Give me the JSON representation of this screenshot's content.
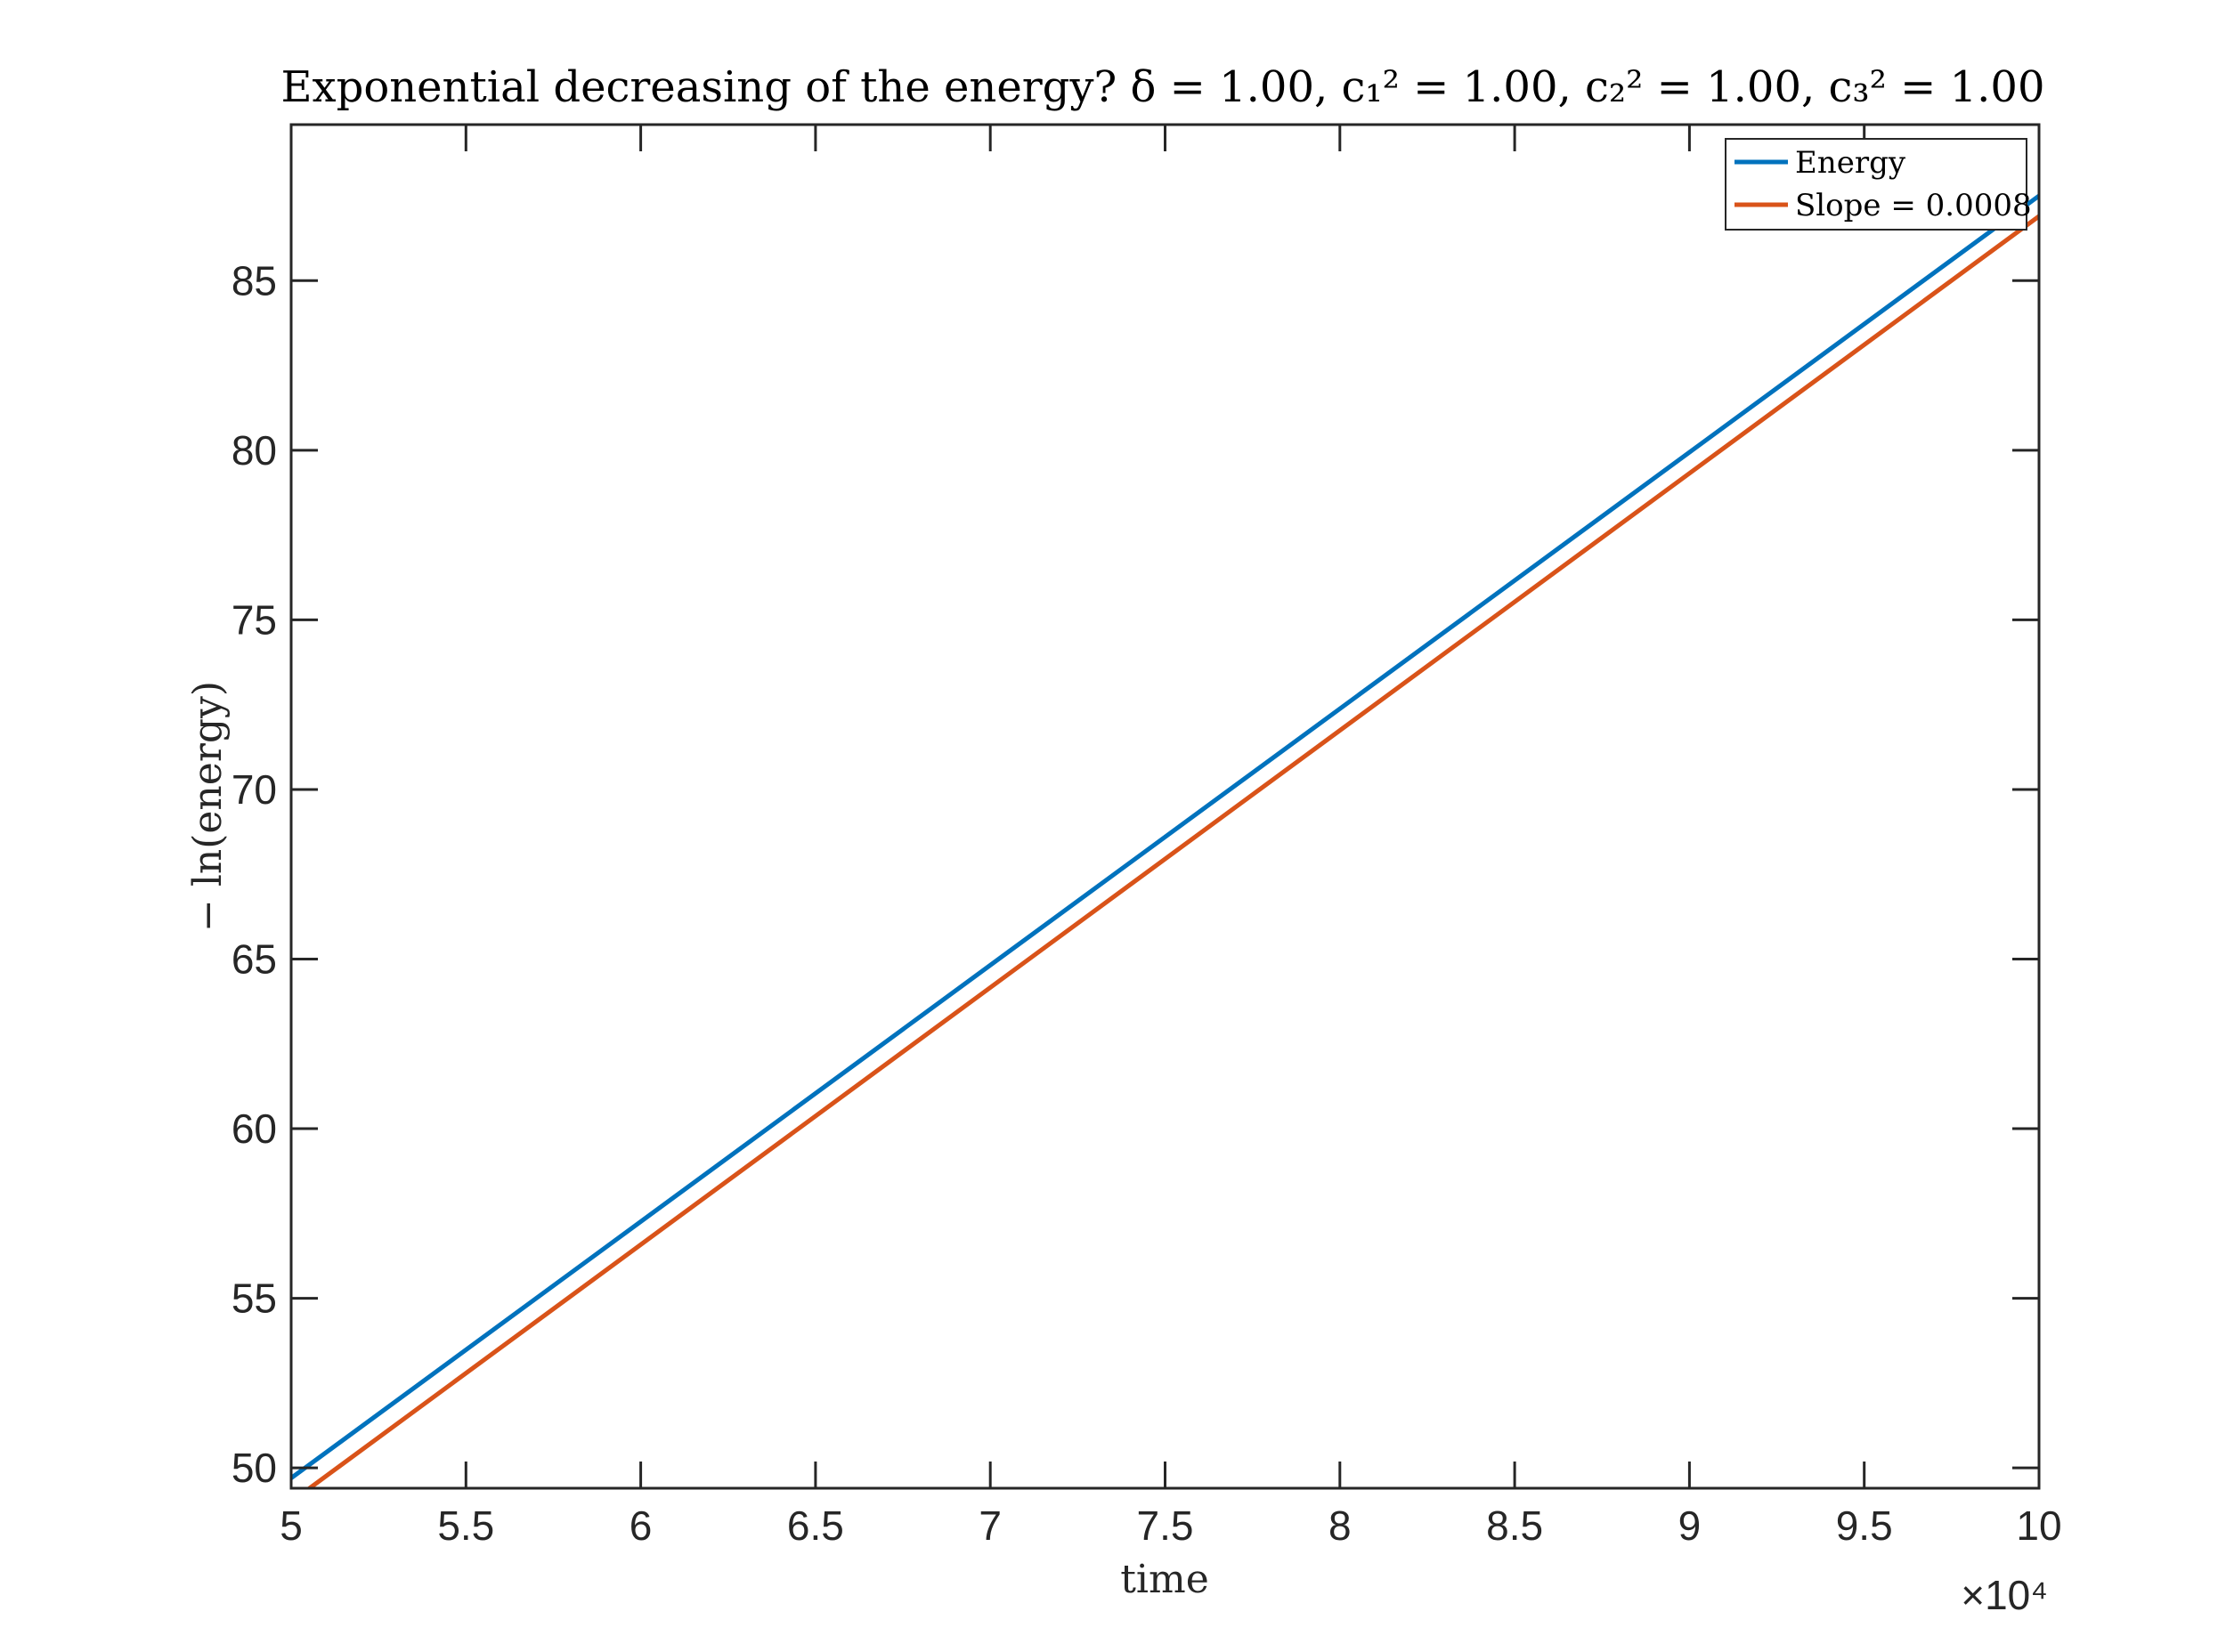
{
  "chart_data": {
    "type": "line",
    "title": "Exponential decreasing of the energy? δ = 1.00, c₁² = 1.00, c₂² = 1.00, c₃² = 1.00",
    "xlabel": "time",
    "ylabel": "− ln(energy)",
    "x_exponent_label": "×10⁴",
    "xlim": [
      50000,
      100000
    ],
    "ylim": [
      49.4,
      89.6
    ],
    "x_ticks": [
      50000,
      55000,
      60000,
      65000,
      70000,
      75000,
      80000,
      85000,
      90000,
      95000,
      100000
    ],
    "x_tick_labels": [
      "5",
      "5.5",
      "6",
      "6.5",
      "7",
      "7.5",
      "8",
      "8.5",
      "9",
      "9.5",
      "10"
    ],
    "y_ticks": [
      50,
      55,
      60,
      65,
      70,
      75,
      80,
      85
    ],
    "y_tick_labels": [
      "50",
      "55",
      "60",
      "65",
      "70",
      "75",
      "80",
      "85"
    ],
    "grid": false,
    "legend_position": "top-right",
    "series": [
      {
        "name": "Energy",
        "color": "#0072BD",
        "x": [
          50000,
          100000
        ],
        "y": [
          49.7,
          87.5
        ]
      },
      {
        "name": "Slope = 0.0008",
        "color": "#D95319",
        "x": [
          50000,
          100000
        ],
        "y": [
          49.0,
          86.9
        ]
      }
    ]
  }
}
